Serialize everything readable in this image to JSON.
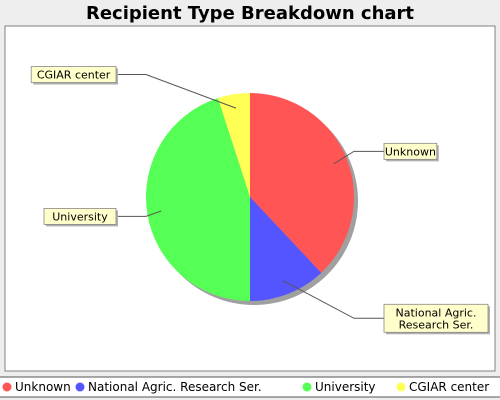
{
  "chart_data": {
    "type": "pie",
    "title": "Recipient Type Breakdown chart",
    "categories": [
      "Unknown",
      "National Agric. Research Ser.",
      "University",
      "CGIAR center"
    ],
    "values": [
      38,
      12,
      45,
      5
    ],
    "colors": [
      "#ff5555",
      "#5555ff",
      "#55ff55",
      "#ffff55"
    ],
    "slice_labels": [
      [
        "Unknown"
      ],
      [
        "National Agric.",
        "Research Ser."
      ],
      [
        "University"
      ],
      [
        "CGIAR center"
      ]
    ],
    "legend": {
      "placement": "bottom",
      "entries": [
        "Unknown",
        "National Agric. Research Ser.",
        "University",
        "CGIAR center"
      ]
    },
    "grid": false
  }
}
